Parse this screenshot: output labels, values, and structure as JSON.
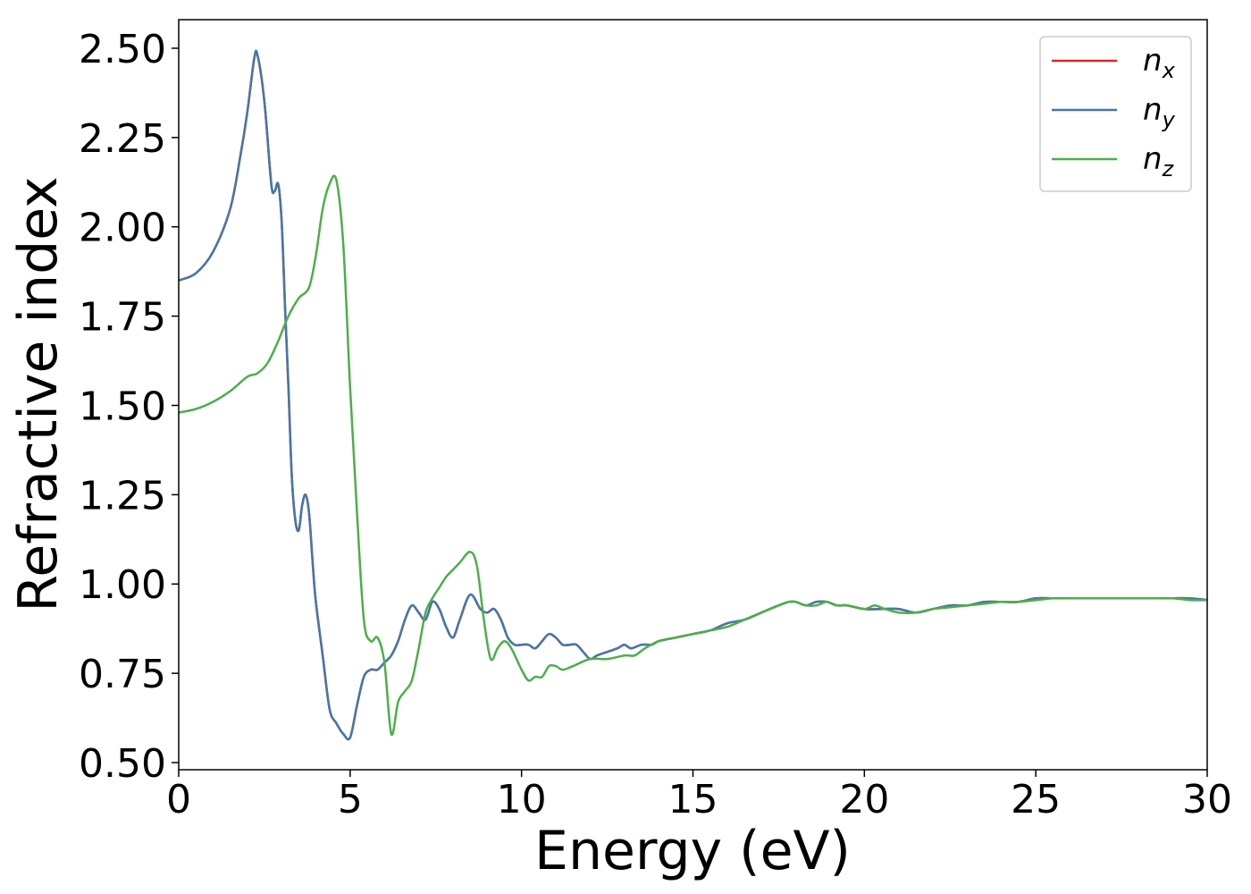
{
  "chart_data": {
    "type": "line",
    "title": "",
    "xlabel": "Energy (eV)",
    "ylabel": "Refractive index",
    "xlim": [
      0,
      30
    ],
    "ylim": [
      0.48,
      2.58
    ],
    "xticks": [
      0,
      5,
      10,
      15,
      20,
      25,
      30
    ],
    "xtick_labels": [
      "0",
      "5",
      "10",
      "15",
      "20",
      "25",
      "30"
    ],
    "yticks": [
      0.5,
      0.75,
      1.0,
      1.25,
      1.5,
      1.75,
      2.0,
      2.25,
      2.5
    ],
    "ytick_labels": [
      "0.50",
      "0.75",
      "1.00",
      "1.25",
      "1.50",
      "1.75",
      "2.00",
      "2.25",
      "2.50"
    ],
    "grid": false,
    "legend_position": "top-right",
    "legend_entries": [
      {
        "base": "n",
        "sub": "x"
      },
      {
        "base": "n",
        "sub": "y"
      },
      {
        "base": "n",
        "sub": "z"
      }
    ],
    "series": [
      {
        "name": "n_x",
        "color": "#d62728",
        "x": [
          0,
          0.5,
          1.0,
          1.5,
          1.8,
          2.0,
          2.2,
          2.3,
          2.5,
          2.7,
          2.8,
          2.9,
          3.0,
          3.1,
          3.2,
          3.3,
          3.4,
          3.5,
          3.6,
          3.7,
          3.8,
          3.9,
          4.0,
          4.2,
          4.4,
          4.6,
          4.8,
          5.0,
          5.2,
          5.4,
          5.6,
          5.8,
          6.0,
          6.2,
          6.4,
          6.6,
          6.8,
          7.0,
          7.2,
          7.4,
          7.6,
          7.8,
          8.0,
          8.2,
          8.5,
          8.8,
          9.0,
          9.2,
          9.4,
          9.6,
          9.8,
          10.0,
          10.2,
          10.4,
          10.6,
          10.8,
          11.0,
          11.2,
          11.4,
          11.6,
          11.8,
          12.0,
          12.2,
          12.5,
          12.8,
          13.0,
          13.2,
          13.5,
          13.8,
          14.0,
          14.5,
          15.0,
          15.5,
          16.0,
          16.5,
          17.0,
          17.5,
          17.8,
          18.0,
          18.3,
          18.6,
          18.9,
          19.2,
          19.5,
          20.0,
          20.5,
          21.0,
          21.5,
          22.0,
          22.5,
          23.0,
          23.5,
          24.0,
          24.5,
          25.0,
          25.5,
          26.0,
          26.5,
          27.0,
          27.5,
          28.0,
          28.5,
          29.0,
          29.5,
          30.0
        ],
        "y": [
          1.85,
          1.87,
          1.93,
          2.05,
          2.2,
          2.32,
          2.47,
          2.48,
          2.35,
          2.12,
          2.1,
          2.12,
          2.02,
          1.78,
          1.55,
          1.3,
          1.18,
          1.15,
          1.22,
          1.25,
          1.2,
          1.07,
          0.95,
          0.8,
          0.65,
          0.61,
          0.58,
          0.57,
          0.66,
          0.74,
          0.76,
          0.76,
          0.78,
          0.8,
          0.84,
          0.9,
          0.94,
          0.92,
          0.9,
          0.95,
          0.93,
          0.88,
          0.85,
          0.9,
          0.97,
          0.93,
          0.92,
          0.93,
          0.9,
          0.85,
          0.83,
          0.83,
          0.83,
          0.82,
          0.84,
          0.86,
          0.85,
          0.83,
          0.83,
          0.83,
          0.81,
          0.79,
          0.8,
          0.81,
          0.82,
          0.83,
          0.82,
          0.83,
          0.83,
          0.84,
          0.85,
          0.86,
          0.87,
          0.89,
          0.9,
          0.92,
          0.94,
          0.95,
          0.95,
          0.94,
          0.95,
          0.95,
          0.94,
          0.94,
          0.93,
          0.93,
          0.93,
          0.92,
          0.93,
          0.94,
          0.94,
          0.95,
          0.95,
          0.95,
          0.96,
          0.96,
          0.96,
          0.96,
          0.96,
          0.96,
          0.96,
          0.96,
          0.96,
          0.96,
          0.955
        ]
      },
      {
        "name": "n_y",
        "color": "#4477aa",
        "x": [
          0,
          0.5,
          1.0,
          1.5,
          1.8,
          2.0,
          2.2,
          2.3,
          2.5,
          2.7,
          2.8,
          2.9,
          3.0,
          3.1,
          3.2,
          3.3,
          3.4,
          3.5,
          3.6,
          3.7,
          3.8,
          3.9,
          4.0,
          4.2,
          4.4,
          4.6,
          4.8,
          5.0,
          5.2,
          5.4,
          5.6,
          5.8,
          6.0,
          6.2,
          6.4,
          6.6,
          6.8,
          7.0,
          7.2,
          7.4,
          7.6,
          7.8,
          8.0,
          8.2,
          8.5,
          8.8,
          9.0,
          9.2,
          9.4,
          9.6,
          9.8,
          10.0,
          10.2,
          10.4,
          10.6,
          10.8,
          11.0,
          11.2,
          11.4,
          11.6,
          11.8,
          12.0,
          12.2,
          12.5,
          12.8,
          13.0,
          13.2,
          13.5,
          13.8,
          14.0,
          14.5,
          15.0,
          15.5,
          16.0,
          16.5,
          17.0,
          17.5,
          17.8,
          18.0,
          18.3,
          18.6,
          18.9,
          19.2,
          19.5,
          20.0,
          20.5,
          21.0,
          21.5,
          22.0,
          22.5,
          23.0,
          23.5,
          24.0,
          24.5,
          25.0,
          25.5,
          26.0,
          26.5,
          27.0,
          27.5,
          28.0,
          28.5,
          29.0,
          29.5,
          30.0
        ],
        "y": [
          1.85,
          1.87,
          1.93,
          2.05,
          2.2,
          2.32,
          2.47,
          2.48,
          2.35,
          2.12,
          2.1,
          2.12,
          2.02,
          1.78,
          1.55,
          1.3,
          1.18,
          1.15,
          1.22,
          1.25,
          1.2,
          1.07,
          0.95,
          0.8,
          0.65,
          0.61,
          0.58,
          0.57,
          0.66,
          0.74,
          0.76,
          0.76,
          0.78,
          0.8,
          0.84,
          0.9,
          0.94,
          0.92,
          0.9,
          0.95,
          0.93,
          0.88,
          0.85,
          0.9,
          0.97,
          0.93,
          0.92,
          0.93,
          0.9,
          0.85,
          0.83,
          0.83,
          0.83,
          0.82,
          0.84,
          0.86,
          0.85,
          0.83,
          0.83,
          0.83,
          0.81,
          0.79,
          0.8,
          0.81,
          0.82,
          0.83,
          0.82,
          0.83,
          0.83,
          0.84,
          0.85,
          0.86,
          0.87,
          0.89,
          0.9,
          0.92,
          0.94,
          0.95,
          0.95,
          0.94,
          0.95,
          0.95,
          0.94,
          0.94,
          0.93,
          0.93,
          0.93,
          0.92,
          0.93,
          0.94,
          0.94,
          0.95,
          0.95,
          0.95,
          0.96,
          0.96,
          0.96,
          0.96,
          0.96,
          0.96,
          0.96,
          0.96,
          0.96,
          0.96,
          0.955
        ]
      },
      {
        "name": "n_z",
        "color": "#4daf4a",
        "x": [
          0,
          0.5,
          1.0,
          1.5,
          2.0,
          2.3,
          2.6,
          2.9,
          3.2,
          3.5,
          3.8,
          4.0,
          4.2,
          4.4,
          4.6,
          4.8,
          5.0,
          5.2,
          5.4,
          5.6,
          5.8,
          6.0,
          6.2,
          6.4,
          6.6,
          6.8,
          7.0,
          7.2,
          7.4,
          7.6,
          7.8,
          8.0,
          8.2,
          8.5,
          8.7,
          8.9,
          9.1,
          9.3,
          9.5,
          9.7,
          10.0,
          10.2,
          10.4,
          10.6,
          10.8,
          11.0,
          11.2,
          11.5,
          12.0,
          12.5,
          13.0,
          13.3,
          13.6,
          14.0,
          14.5,
          15.0,
          15.5,
          16.0,
          16.5,
          17.0,
          17.5,
          17.8,
          18.0,
          18.3,
          18.6,
          18.9,
          19.2,
          19.5,
          20.0,
          20.3,
          20.6,
          21.0,
          21.5,
          22.0,
          22.5,
          23.0,
          23.5,
          24.0,
          24.5,
          25.0,
          25.5,
          26.0,
          26.5,
          27.0,
          27.5,
          28.0,
          28.5,
          29.0,
          29.5,
          30.0
        ],
        "y": [
          1.48,
          1.49,
          1.51,
          1.54,
          1.58,
          1.59,
          1.62,
          1.68,
          1.75,
          1.8,
          1.83,
          1.92,
          2.05,
          2.12,
          2.13,
          1.95,
          1.55,
          1.2,
          0.9,
          0.84,
          0.85,
          0.78,
          0.58,
          0.67,
          0.7,
          0.73,
          0.82,
          0.92,
          0.96,
          0.99,
          1.02,
          1.04,
          1.06,
          1.09,
          1.05,
          0.9,
          0.79,
          0.82,
          0.84,
          0.82,
          0.76,
          0.73,
          0.74,
          0.74,
          0.77,
          0.77,
          0.76,
          0.77,
          0.79,
          0.79,
          0.8,
          0.8,
          0.82,
          0.84,
          0.85,
          0.86,
          0.87,
          0.88,
          0.9,
          0.92,
          0.94,
          0.95,
          0.95,
          0.94,
          0.94,
          0.95,
          0.94,
          0.94,
          0.93,
          0.94,
          0.93,
          0.92,
          0.92,
          0.93,
          0.935,
          0.94,
          0.945,
          0.95,
          0.95,
          0.955,
          0.96,
          0.96,
          0.96,
          0.96,
          0.96,
          0.96,
          0.96,
          0.96,
          0.955,
          0.955
        ]
      }
    ]
  }
}
